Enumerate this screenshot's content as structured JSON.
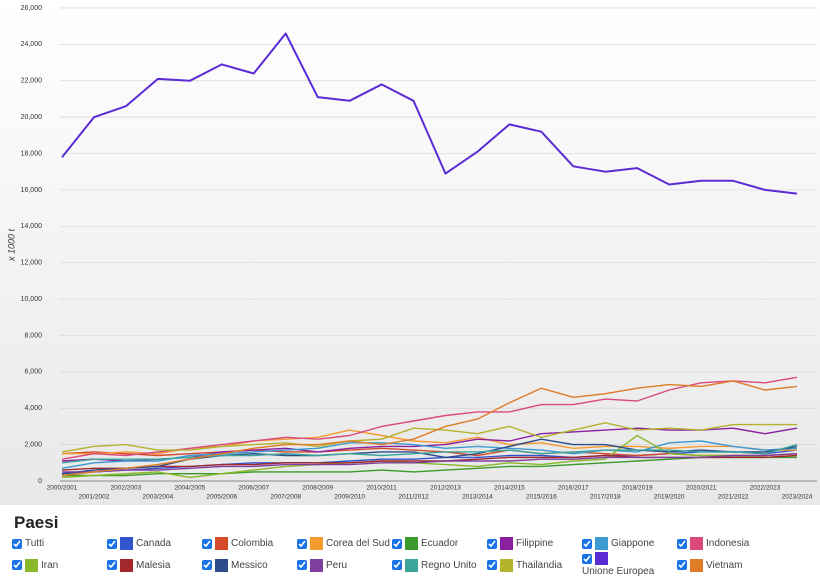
{
  "chart_data": {
    "type": "line",
    "y_label": "x 1000 t",
    "categories": [
      "2000/2001",
      "2001/2002",
      "2002/2003",
      "2003/2004",
      "2004/2005",
      "2005/2006",
      "2006/2007",
      "2007/2008",
      "2008/2009",
      "2009/2010",
      "2010/2011",
      "2011/2012",
      "2012/2013",
      "2013/2014",
      "2014/2015",
      "2015/2016",
      "2016/2017",
      "2017/2018",
      "2018/2019",
      "2019/2020",
      "2020/2021",
      "2021/2022",
      "2022/2023",
      "2023/2024"
    ],
    "ylim": [
      0,
      26000
    ],
    "yticks": [
      0,
      {
        "value": 2000,
        "label": "2,000"
      },
      {
        "value": 4000,
        "label": "4,000"
      },
      {
        "value": 6000,
        "label": "6,000"
      },
      {
        "value": 8000,
        "label": "8,000"
      },
      {
        "value": 10000,
        "label": "10,000"
      },
      {
        "value": 12000,
        "label": "12,000"
      },
      {
        "value": 14000,
        "label": "14,000"
      },
      {
        "value": 16000,
        "label": "16,000"
      },
      {
        "value": 18000,
        "label": "18,000"
      },
      {
        "value": 20000,
        "label": "20,000"
      },
      {
        "value": 22000,
        "label": "22,000"
      },
      {
        "value": 24000,
        "label": "24,000"
      },
      {
        "value": 26000,
        "label": "26,000"
      }
    ],
    "grid": true,
    "legend_title": "Paesi",
    "legend_all": "Tutti",
    "series": [
      {
        "name": "Canada",
        "color": "#3355cc",
        "values": [
          400,
          500,
          600,
          700,
          800,
          900,
          1000,
          1000,
          1000,
          1100,
          1200,
          1200,
          1300,
          1300,
          1400,
          1400,
          1300,
          1400,
          1400,
          1500,
          1600,
          1600,
          1500,
          1700
        ]
      },
      {
        "name": "Colombia",
        "color": "#d64a2a",
        "values": [
          1500,
          1600,
          1500,
          1400,
          1500,
          1600,
          1700,
          1600,
          1600,
          1700,
          1800,
          1700,
          1600,
          1400,
          1700,
          1500,
          1600,
          1500,
          1400,
          1500,
          1400,
          1400,
          1400,
          1500
        ]
      },
      {
        "name": "Corea del Sud",
        "color": "#f59a2f",
        "values": [
          1500,
          1500,
          1600,
          1500,
          1800,
          1900,
          2200,
          2300,
          2400,
          2800,
          2500,
          2200,
          2100,
          2400,
          2000,
          2100,
          1800,
          1900,
          1900,
          1800,
          1900,
          1900,
          1700,
          1700
        ]
      },
      {
        "name": "Ecuador",
        "color": "#3a9a2a",
        "values": [
          300,
          300,
          300,
          400,
          400,
          400,
          500,
          500,
          500,
          500,
          600,
          500,
          600,
          700,
          800,
          800,
          900,
          1000,
          1100,
          1200,
          1300,
          1300,
          1300,
          1300
        ]
      },
      {
        "name": "Filippine",
        "color": "#8a1fa0",
        "values": [
          1100,
          1200,
          1100,
          1200,
          1300,
          1600,
          1700,
          1800,
          1600,
          1800,
          1900,
          1900,
          2000,
          2300,
          2200,
          2600,
          2700,
          2800,
          2900,
          2800,
          2800,
          2900,
          2600,
          2900
        ]
      },
      {
        "name": "Giappone",
        "color": "#3d9ad1",
        "values": [
          700,
          1000,
          1100,
          1100,
          1400,
          1500,
          1600,
          1700,
          1800,
          2100,
          2100,
          2000,
          1800,
          1900,
          1800,
          1700,
          1500,
          1700,
          1600,
          2100,
          2200,
          1900,
          1700,
          1800
        ]
      },
      {
        "name": "Indonesia",
        "color": "#d9497c",
        "values": [
          1200,
          1500,
          1400,
          1600,
          1800,
          2000,
          2200,
          2400,
          2300,
          2500,
          3000,
          3300,
          3600,
          3800,
          3800,
          4200,
          4200,
          4500,
          4400,
          5000,
          5400,
          5500,
          5400,
          5700
        ]
      },
      {
        "name": "Iran",
        "color": "#8ab82b",
        "values": [
          200,
          300,
          400,
          500,
          200,
          400,
          600,
          800,
          900,
          1000,
          1100,
          1000,
          900,
          800,
          1000,
          900,
          1100,
          1200,
          2500,
          1500,
          1400,
          1400,
          1300,
          1400
        ]
      },
      {
        "name": "Malesia",
        "color": "#a3282b",
        "values": [
          600,
          700,
          700,
          800,
          800,
          900,
          900,
          1000,
          1000,
          1000,
          1100,
          1100,
          1100,
          1200,
          1300,
          1300,
          1300,
          1400,
          1300,
          1300,
          1300,
          1300,
          1300,
          1400
        ]
      },
      {
        "name": "Messico",
        "color": "#2c4c8a",
        "values": [
          400,
          600,
          700,
          800,
          1200,
          1400,
          1500,
          1400,
          1400,
          1500,
          1600,
          1600,
          1300,
          1500,
          1900,
          2300,
          2000,
          2000,
          1700,
          1600,
          1700,
          1600,
          1600,
          1900
        ]
      },
      {
        "name": "Peru",
        "color": "#7e3f9e",
        "values": [
          500,
          500,
          600,
          600,
          700,
          800,
          800,
          900,
          900,
          900,
          1000,
          1000,
          1100,
          1100,
          1100,
          1200,
          1200,
          1300,
          1300,
          1300,
          1300,
          1400,
          1400,
          1500
        ]
      },
      {
        "name": "Regno Unito",
        "color": "#3aa59a",
        "values": [
          1000,
          1200,
          1200,
          1200,
          1300,
          1400,
          1400,
          1500,
          1400,
          1500,
          1400,
          1500,
          1600,
          1600,
          1700,
          1500,
          1600,
          1700,
          1700,
          1700,
          1600,
          1600,
          1500,
          2000
        ]
      },
      {
        "name": "Thailandia",
        "color": "#b3b32e",
        "values": [
          1600,
          1900,
          2000,
          1700,
          1700,
          1900,
          2000,
          2100,
          1900,
          2200,
          2300,
          2900,
          2800,
          2600,
          3000,
          2400,
          2800,
          3200,
          2800,
          2900,
          2800,
          3100,
          3100,
          3100
        ]
      },
      {
        "name": "Unione Europea",
        "color": "#5b2bd6",
        "values": [
          17800,
          20000,
          20600,
          22100,
          22000,
          22900,
          22400,
          24600,
          21100,
          20900,
          21800,
          20900,
          16900,
          18100,
          19600,
          19200,
          17300,
          17000,
          17200,
          16300,
          16500,
          16500,
          16000,
          15800
        ]
      },
      {
        "name": "Vietnam",
        "color": "#e07b27",
        "values": [
          300,
          500,
          700,
          900,
          1200,
          1500,
          1800,
          2000,
          2000,
          2200,
          2000,
          2300,
          3000,
          3400,
          4300,
          5100,
          4600,
          4800,
          5100,
          5300,
          5200,
          5500,
          5000,
          5200
        ]
      }
    ]
  }
}
